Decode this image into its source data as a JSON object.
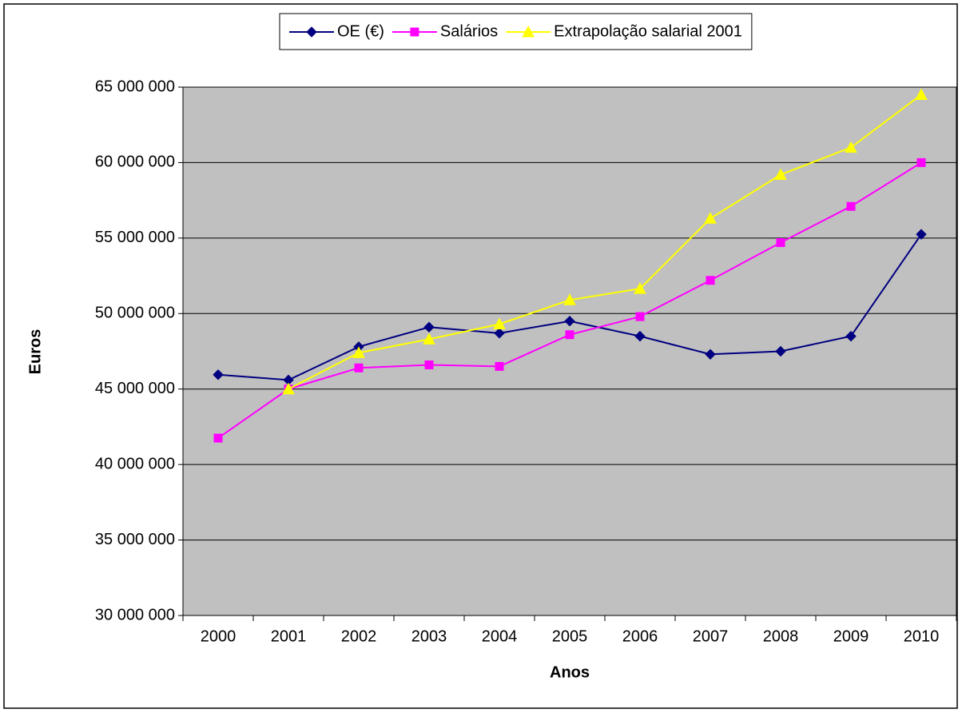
{
  "chart_data": {
    "type": "line",
    "x_label": "Anos",
    "y_label": "Euros",
    "categories": [
      "2000",
      "2001",
      "2002",
      "2003",
      "2004",
      "2005",
      "2006",
      "2007",
      "2008",
      "2009",
      "2010"
    ],
    "series": [
      {
        "name": "OE (€)",
        "color": "#000080",
        "marker": "diamond",
        "values": [
          45950000,
          45600000,
          47800000,
          49100000,
          48700000,
          49500000,
          48500000,
          47300000,
          47500000,
          48500000,
          55250000
        ]
      },
      {
        "name": "Salários",
        "color": "#ff00ff",
        "marker": "square",
        "values": [
          41750000,
          45000000,
          46400000,
          46600000,
          46500000,
          48600000,
          49800000,
          52200000,
          54700000,
          57100000,
          60000000
        ]
      },
      {
        "name": "Extrapolação salarial 2001",
        "color": "#ffff00",
        "marker": "triangle",
        "values": [
          null,
          45000000,
          47400000,
          48300000,
          49300000,
          50900000,
          51650000,
          56300000,
          59200000,
          61000000,
          64500000
        ]
      }
    ],
    "ylim": [
      30000000,
      65000000
    ],
    "yticks": [
      {
        "value": 30000000,
        "label": "30 000 000"
      },
      {
        "value": 35000000,
        "label": "35 000 000"
      },
      {
        "value": 40000000,
        "label": "40 000 000"
      },
      {
        "value": 45000000,
        "label": "45 000 000"
      },
      {
        "value": 50000000,
        "label": "50 000 000"
      },
      {
        "value": 55000000,
        "label": "55 000 000"
      },
      {
        "value": 60000000,
        "label": "60 000 000"
      },
      {
        "value": 65000000,
        "label": "65 000 000"
      }
    ],
    "grid": true,
    "legend": "top"
  }
}
